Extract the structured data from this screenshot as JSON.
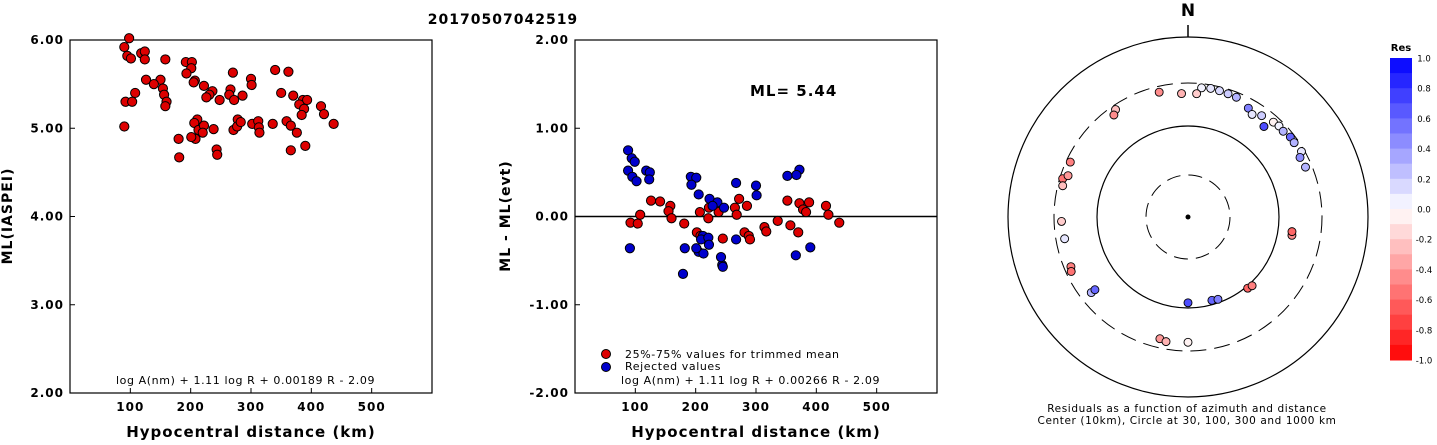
{
  "title": "20170507042519",
  "chart_data": [
    {
      "type": "scatter",
      "ylabel": "ML(IASPEI)",
      "xlabel": "Hypocentral distance (km)",
      "xlim": [
        0,
        600
      ],
      "ylim": [
        2.0,
        6.0
      ],
      "xticks": [
        "100",
        "200",
        "300",
        "400",
        "500"
      ],
      "yticks": [
        "2.00",
        "3.00",
        "4.00",
        "5.00",
        "6.00"
      ],
      "formula": "log A(nm) + 1.11 log R + 0.00189 R - 2.09",
      "series": [
        {
          "color": "#dd0000",
          "points": [
            [
              98,
              6.02
            ],
            [
              90,
              5.92
            ],
            [
              95,
              5.82
            ],
            [
              101,
              5.79
            ],
            [
              118,
              5.85
            ],
            [
              124,
              5.87
            ],
            [
              124,
              5.78
            ],
            [
              158,
              5.78
            ],
            [
              150,
              5.55
            ],
            [
              126,
              5.55
            ],
            [
              139,
              5.5
            ],
            [
              154,
              5.45
            ],
            [
              156,
              5.38
            ],
            [
              160,
              5.3
            ],
            [
              158,
              5.25
            ],
            [
              92,
              5.3
            ],
            [
              103,
              5.3
            ],
            [
              108,
              5.4
            ],
            [
              90,
              5.02
            ],
            [
              192,
              5.75
            ],
            [
              202,
              5.75
            ],
            [
              201,
              5.68
            ],
            [
              193,
              5.62
            ],
            [
              207,
              5.54
            ],
            [
              205,
              5.52
            ],
            [
              222,
              5.48
            ],
            [
              236,
              5.42
            ],
            [
              231,
              5.38
            ],
            [
              226,
              5.35
            ],
            [
              248,
              5.32
            ],
            [
              270,
              5.63
            ],
            [
              266,
              5.44
            ],
            [
              264,
              5.38
            ],
            [
              272,
              5.32
            ],
            [
              286,
              5.37
            ],
            [
              300,
              5.56
            ],
            [
              301,
              5.49
            ],
            [
              340,
              5.66
            ],
            [
              362,
              5.64
            ],
            [
              350,
              5.4
            ],
            [
              370,
              5.37
            ],
            [
              386,
              5.32
            ],
            [
              393,
              5.32
            ],
            [
              380,
              5.27
            ],
            [
              388,
              5.22
            ],
            [
              384,
              5.15
            ],
            [
              416,
              5.25
            ],
            [
              421,
              5.16
            ],
            [
              437,
              5.05
            ],
            [
              211,
              5.1
            ],
            [
              206,
              5.06
            ],
            [
              213,
              4.98
            ],
            [
              208,
              4.88
            ],
            [
              201,
              4.9
            ],
            [
              222,
              5.03
            ],
            [
              220,
              4.95
            ],
            [
              238,
              4.99
            ],
            [
              243,
              4.76
            ],
            [
              244,
              4.7
            ],
            [
              271,
              4.98
            ],
            [
              278,
              5.1
            ],
            [
              277,
              5.02
            ],
            [
              283,
              5.07
            ],
            [
              302,
              5.05
            ],
            [
              312,
              5.08
            ],
            [
              313,
              5.01
            ],
            [
              314,
              4.95
            ],
            [
              336,
              5.05
            ],
            [
              359,
              5.08
            ],
            [
              366,
              5.03
            ],
            [
              376,
              4.95
            ],
            [
              366,
              4.75
            ],
            [
              390,
              4.8
            ],
            [
              180,
              4.88
            ],
            [
              181,
              4.67
            ]
          ]
        }
      ]
    },
    {
      "type": "scatter",
      "ylabel": "ML - ML(evt)",
      "xlabel": "Hypocentral distance (km)",
      "xlim": [
        0,
        600
      ],
      "ylim": [
        -2.0,
        2.0
      ],
      "xticks": [
        "100",
        "200",
        "300",
        "400",
        "500"
      ],
      "yticks": [
        "-2.00",
        "-1.00",
        "0.00",
        "1.00",
        "2.00"
      ],
      "annotation": "ML= 5.44",
      "formula": "log A(nm) + 1.11 log R + 0.00266 R - 2.09",
      "legend": [
        {
          "label": "25%-75% values for trimmed mean",
          "color": "#dd0000"
        },
        {
          "label": "Rejected values",
          "color": "#0000cc"
        }
      ],
      "series": [
        {
          "name": "25%-75% values for trimmed mean",
          "color": "#dd0000",
          "points": [
            [
              92,
              -0.07
            ],
            [
              104,
              -0.08
            ],
            [
              108,
              0.02
            ],
            [
              126,
              0.18
            ],
            [
              141,
              0.17
            ],
            [
              158,
              0.12
            ],
            [
              155,
              0.06
            ],
            [
              160,
              -0.02
            ],
            [
              181,
              -0.08
            ],
            [
              207,
              0.05
            ],
            [
              202,
              -0.18
            ],
            [
              208,
              -0.22
            ],
            [
              222,
              0.1
            ],
            [
              221,
              -0.02
            ],
            [
              238,
              0.05
            ],
            [
              245,
              -0.25
            ],
            [
              272,
              0.2
            ],
            [
              265,
              0.1
            ],
            [
              268,
              0.02
            ],
            [
              285,
              0.12
            ],
            [
              281,
              -0.18
            ],
            [
              288,
              -0.22
            ],
            [
              290,
              -0.26
            ],
            [
              314,
              -0.12
            ],
            [
              317,
              -0.17
            ],
            [
              336,
              -0.05
            ],
            [
              352,
              0.18
            ],
            [
              357,
              -0.1
            ],
            [
              372,
              0.15
            ],
            [
              378,
              0.08
            ],
            [
              383,
              0.05
            ],
            [
              388,
              0.16
            ],
            [
              370,
              -0.18
            ],
            [
              416,
              0.12
            ],
            [
              420,
              0.02
            ],
            [
              438,
              -0.07
            ]
          ]
        },
        {
          "name": "Rejected values",
          "color": "#0000cc",
          "points": [
            [
              88,
              0.75
            ],
            [
              94,
              0.66
            ],
            [
              99,
              0.62
            ],
            [
              88,
              0.52
            ],
            [
              95,
              0.45
            ],
            [
              102,
              0.4
            ],
            [
              118,
              0.52
            ],
            [
              124,
              0.5
            ],
            [
              123,
              0.42
            ],
            [
              91,
              -0.36
            ],
            [
              192,
              0.45
            ],
            [
              201,
              0.44
            ],
            [
              193,
              0.36
            ],
            [
              205,
              0.25
            ],
            [
              223,
              0.2
            ],
            [
              236,
              0.16
            ],
            [
              228,
              0.12
            ],
            [
              247,
              0.1
            ],
            [
              267,
              0.38
            ],
            [
              300,
              0.35
            ],
            [
              301,
              0.24
            ],
            [
              352,
              0.46
            ],
            [
              372,
              0.53
            ],
            [
              367,
              0.47
            ],
            [
              212,
              -0.22
            ],
            [
              209,
              -0.26
            ],
            [
              221,
              -0.24
            ],
            [
              205,
              -0.4
            ],
            [
              213,
              -0.42
            ],
            [
              201,
              -0.36
            ],
            [
              222,
              -0.32
            ],
            [
              182,
              -0.36
            ],
            [
              179,
              -0.65
            ],
            [
              244,
              -0.55
            ],
            [
              245,
              -0.57
            ],
            [
              242,
              -0.46
            ],
            [
              267,
              -0.26
            ],
            [
              366,
              -0.44
            ],
            [
              390,
              -0.35
            ]
          ]
        }
      ]
    },
    {
      "type": "scatter",
      "subtype": "polar",
      "north_label": "N",
      "caption_line1": "Residuals as a function of azimuth and distance",
      "caption_line2": "Center (10km), Circle at 30, 100, 300 and 1000 km",
      "colorbar_title": "Res",
      "colorbar_ticks": [
        "1.0",
        "0.8",
        "0.6",
        "0.4",
        "0.2",
        "0.0",
        "-0.2",
        "-0.4",
        "-0.6",
        "-0.8",
        "-1.0"
      ],
      "points": [
        {
          "az": 6,
          "dist": 270,
          "res": 0.05
        },
        {
          "az": 10,
          "dist": 275,
          "res": 0.1
        },
        {
          "az": 14,
          "dist": 272,
          "res": 0.15
        },
        {
          "az": 18,
          "dist": 268,
          "res": 0.2
        },
        {
          "az": 22,
          "dist": 265,
          "res": 0.3
        },
        {
          "az": 4,
          "dist": 230,
          "res": -0.2
        },
        {
          "az": 357,
          "dist": 230,
          "res": -0.3
        },
        {
          "az": 347,
          "dist": 258,
          "res": -0.45
        },
        {
          "az": 326,
          "dist": 268,
          "res": -0.25
        },
        {
          "az": 324,
          "dist": 245,
          "res": -0.45
        },
        {
          "az": 29,
          "dist": 235,
          "res": 0.5
        },
        {
          "az": 32,
          "dist": 215,
          "res": 0.1
        },
        {
          "az": 36,
          "dist": 240,
          "res": 0.2
        },
        {
          "az": 42,
          "dist": 255,
          "res": -0.05
        },
        {
          "az": 45,
          "dist": 262,
          "res": 0.05
        },
        {
          "az": 48,
          "dist": 258,
          "res": 0.3
        },
        {
          "az": 52,
          "dist": 270,
          "res": 0.6
        },
        {
          "az": 55,
          "dist": 268,
          "res": 0.3
        },
        {
          "az": 60,
          "dist": 278,
          "res": 0.1
        },
        {
          "az": 62,
          "dist": 250,
          "res": 0.45
        },
        {
          "az": 67,
          "dist": 255,
          "res": 0.3
        },
        {
          "az": 40,
          "dist": 200,
          "res": 0.7
        },
        {
          "az": 295,
          "dist": 270,
          "res": -0.5
        },
        {
          "az": 287,
          "dist": 278,
          "res": -0.55
        },
        {
          "az": 289,
          "dist": 250,
          "res": -0.4
        },
        {
          "az": 284,
          "dist": 265,
          "res": -0.25
        },
        {
          "az": 268,
          "dist": 248,
          "res": -0.2
        },
        {
          "az": 260,
          "dist": 240,
          "res": 0.1
        },
        {
          "az": 247,
          "dist": 252,
          "res": -0.5
        },
        {
          "az": 245,
          "dist": 263,
          "res": -0.55
        },
        {
          "az": 232,
          "dist": 225,
          "res": 0.3
        },
        {
          "az": 232,
          "dist": 200,
          "res": 0.6
        },
        {
          "az": 193,
          "dist": 238,
          "res": -0.4
        },
        {
          "az": 190,
          "dist": 248,
          "res": -0.3
        },
        {
          "az": 180,
          "dist": 88,
          "res": 0.7
        },
        {
          "az": 164,
          "dist": 90,
          "res": 0.6
        },
        {
          "az": 160,
          "dist": 92,
          "res": 0.5
        },
        {
          "az": 180,
          "dist": 240,
          "res": -0.05
        },
        {
          "az": 140,
          "dist": 105,
          "res": -0.6
        },
        {
          "az": 137,
          "dist": 108,
          "res": -0.5
        },
        {
          "az": 100,
          "dist": 145,
          "res": -0.45
        },
        {
          "az": 98,
          "dist": 143,
          "res": -0.6
        }
      ]
    }
  ]
}
